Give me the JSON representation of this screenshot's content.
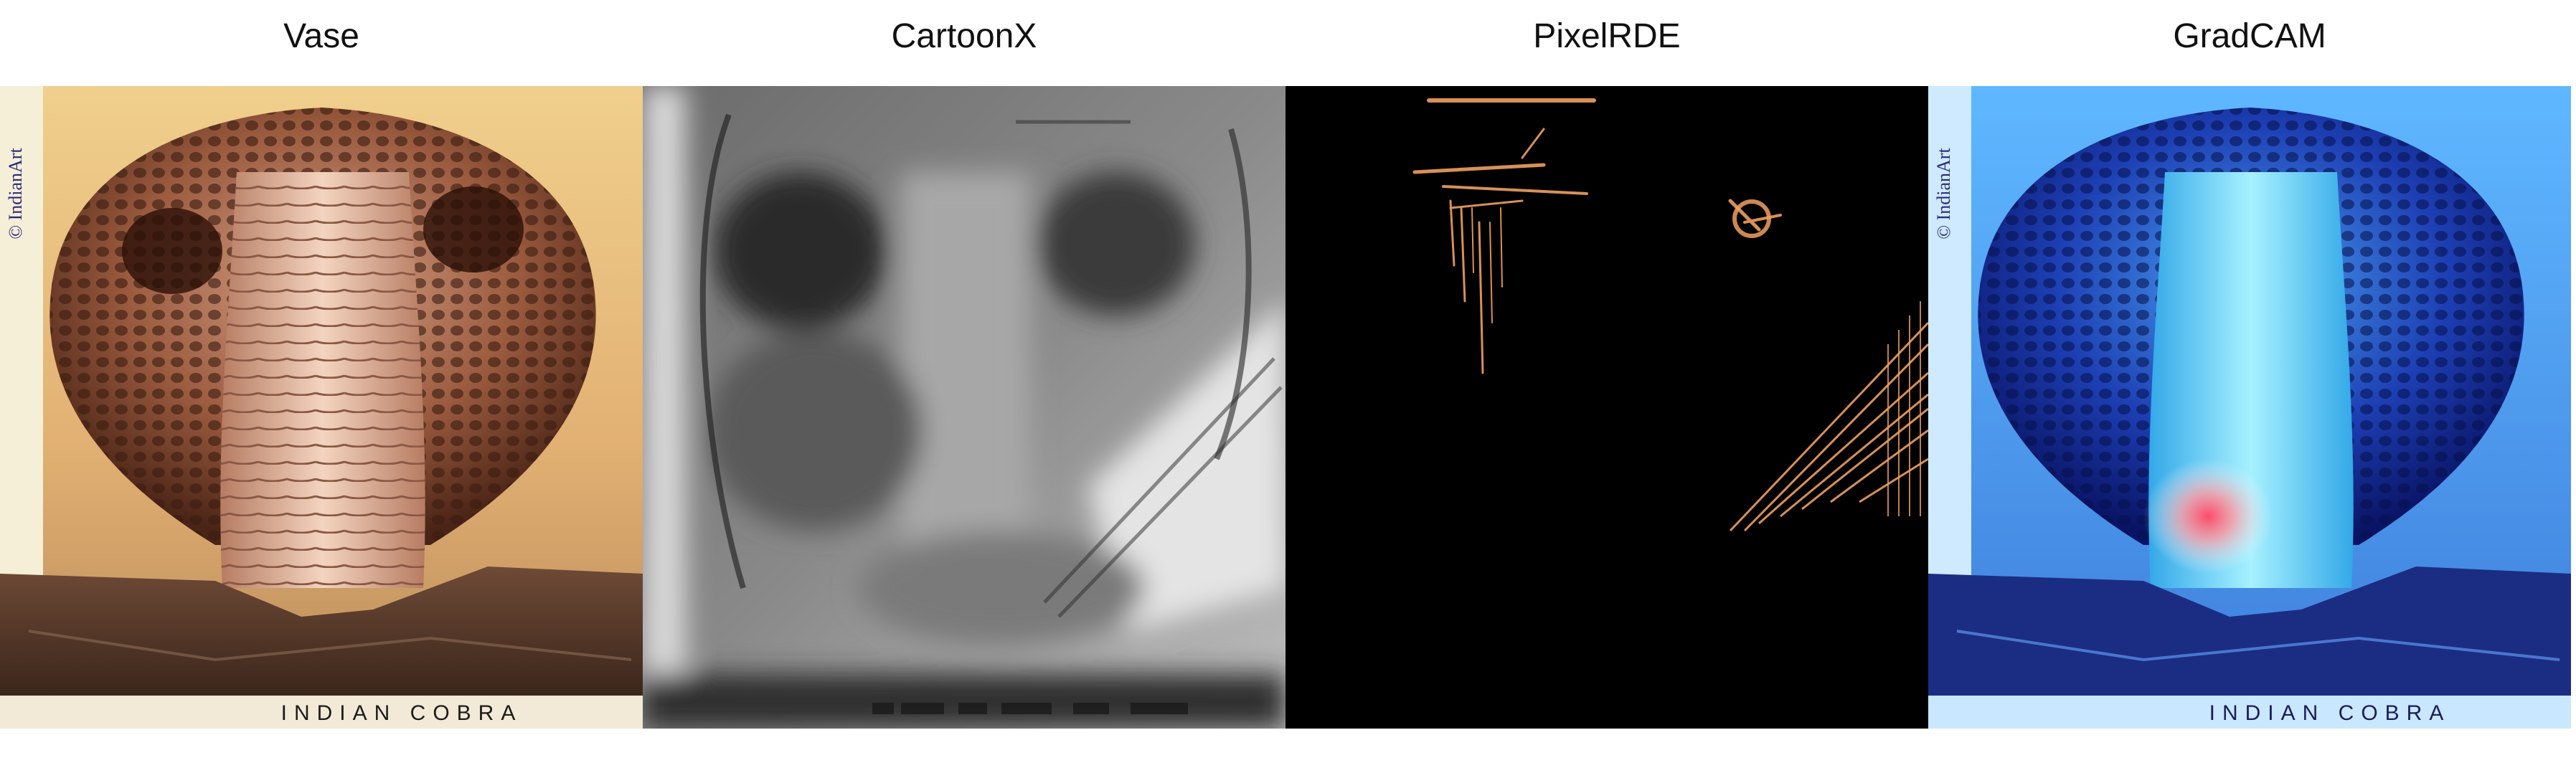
{
  "panels": [
    {
      "title": "Vase",
      "kind": "original"
    },
    {
      "title": "CartoonX",
      "kind": "cartoonx"
    },
    {
      "title": "PixelRDE",
      "kind": "pixelrde"
    },
    {
      "title": "GradCAM",
      "kind": "gradcam"
    }
  ],
  "image_caption": "INDIAN COBRA",
  "watermark": "© IndianArt",
  "colors": {
    "background": "#ffffff",
    "pixelrde_highlight": "#f0a060",
    "gradcam_tint": "#3aa8ff"
  }
}
